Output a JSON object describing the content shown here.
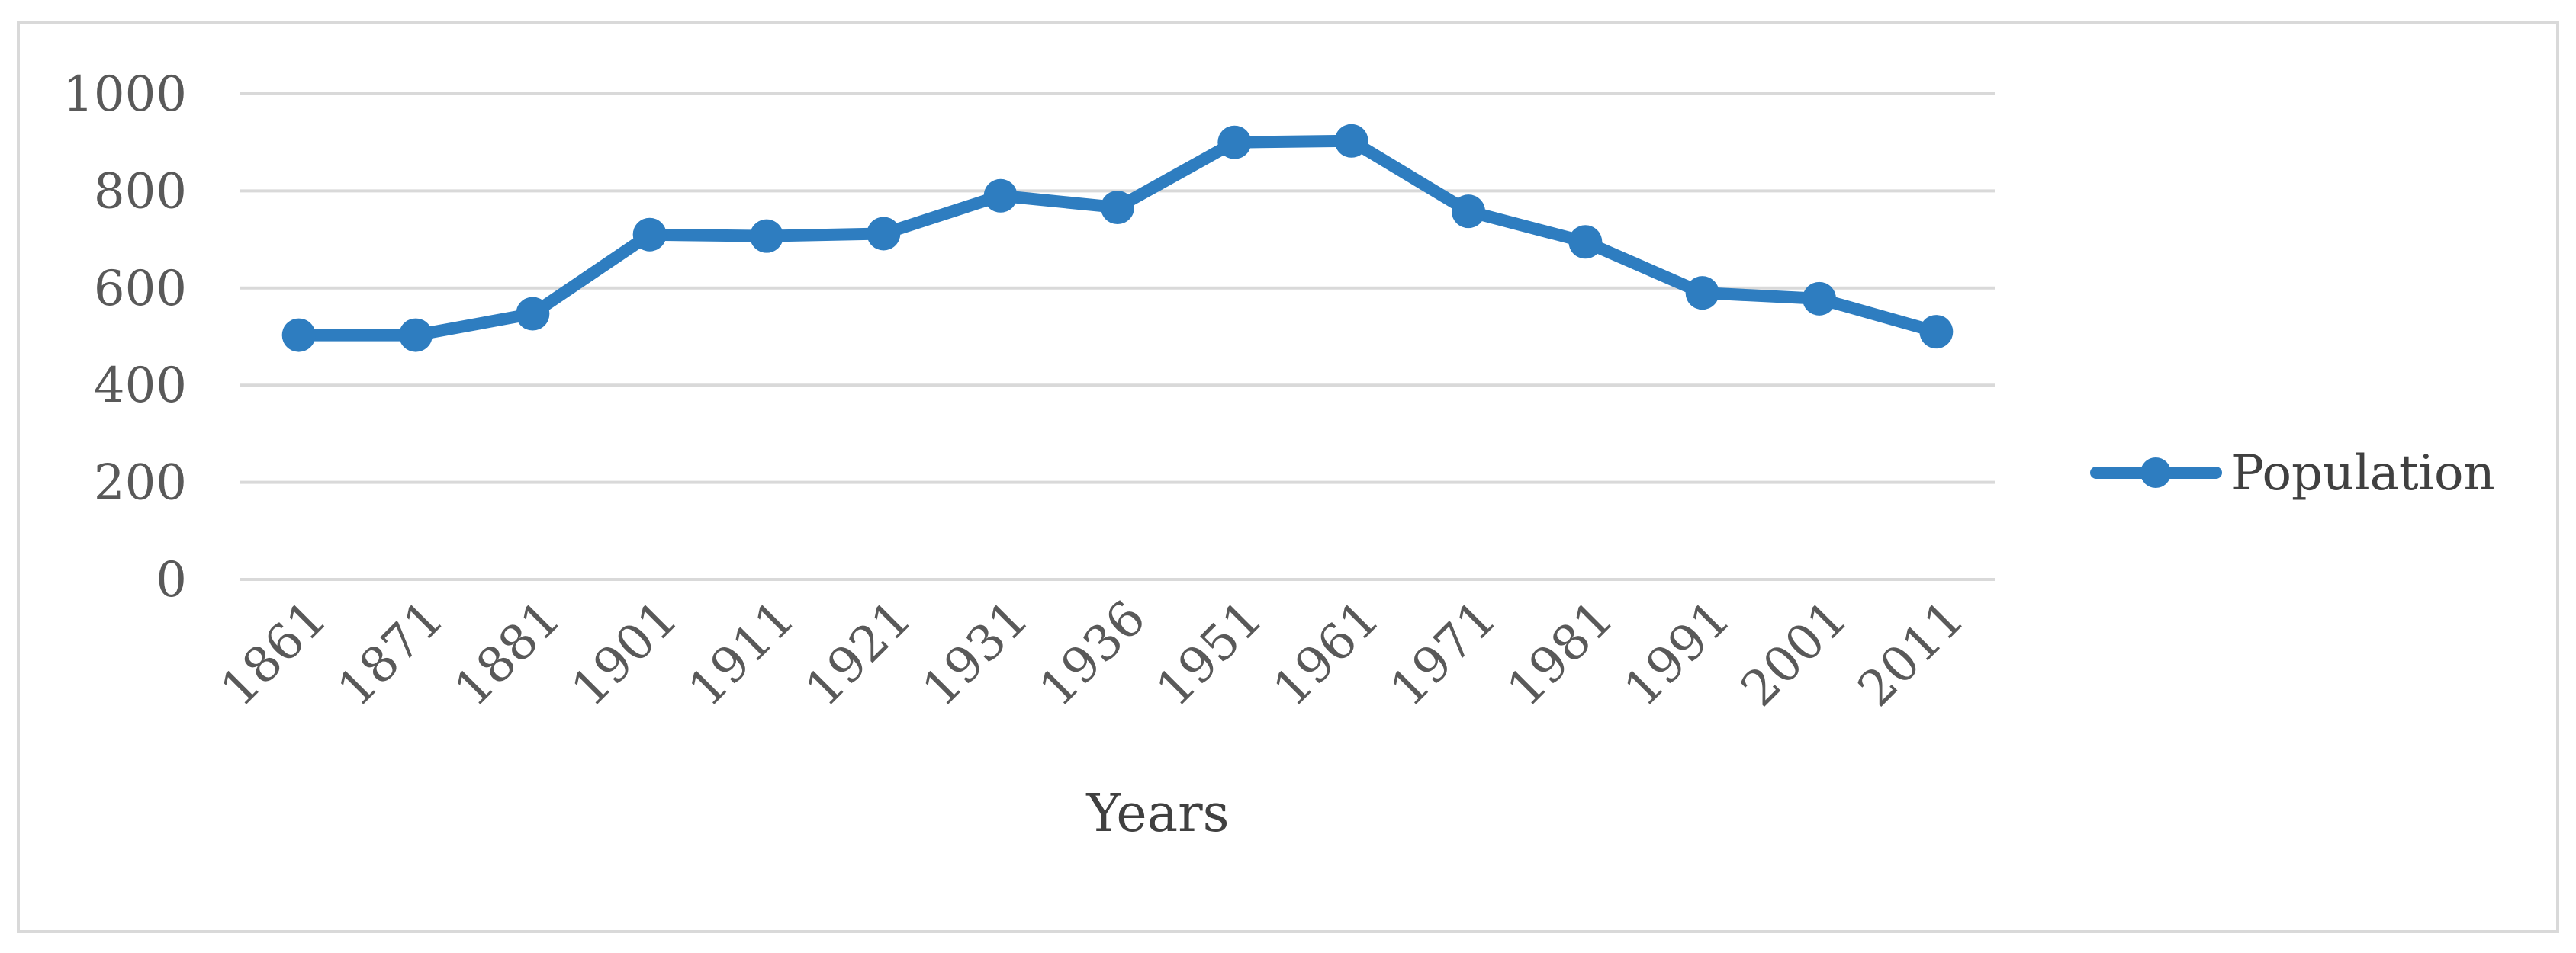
{
  "chart_data": {
    "type": "line",
    "title": "",
    "xlabel": "Years",
    "ylabel": "",
    "categories": [
      "1861",
      "1871",
      "1881",
      "1901",
      "1911",
      "1921",
      "1931",
      "1936",
      "1951",
      "1961",
      "1971",
      "1981",
      "1991",
      "2001",
      "2011"
    ],
    "series": [
      {
        "name": "Population",
        "color": "#2e7dc0",
        "values": [
          503,
          503,
          547,
          710,
          707,
          712,
          790,
          766,
          900,
          903,
          758,
          695,
          590,
          578,
          510
        ]
      }
    ],
    "ylim": [
      0,
      1000
    ],
    "yticks": [
      0,
      200,
      400,
      600,
      800,
      1000
    ],
    "grid": true,
    "legend_position": "right"
  }
}
